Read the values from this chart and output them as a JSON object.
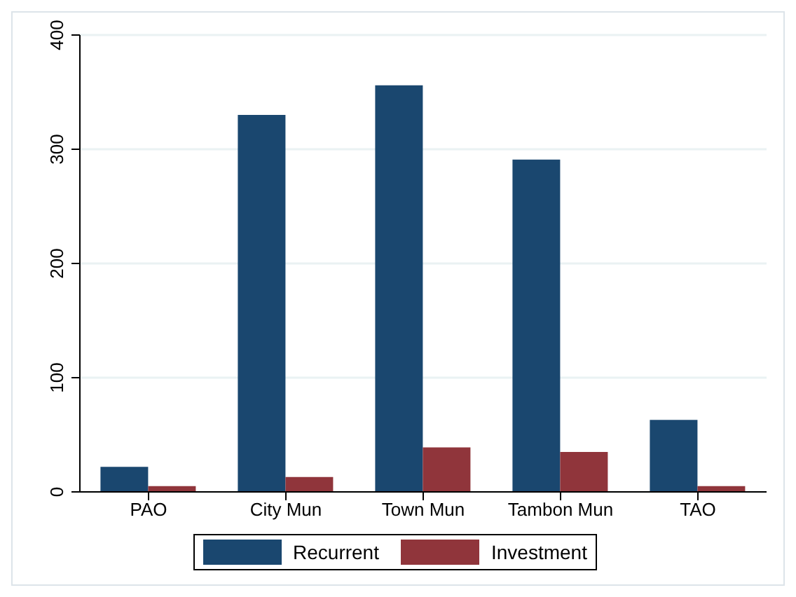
{
  "chart_data": {
    "type": "bar",
    "categories": [
      "PAO",
      "City Mun",
      "Town Mun",
      "Tambon Mun",
      "TAO"
    ],
    "series": [
      {
        "name": "Recurrent",
        "color": "#1a476f",
        "values": [
          22,
          330,
          356,
          291,
          63
        ]
      },
      {
        "name": "Investment",
        "color": "#90353b",
        "values": [
          5,
          13,
          39,
          35,
          5
        ]
      }
    ],
    "ylim": [
      0,
      400
    ],
    "yticks": [
      0,
      100,
      200,
      300,
      400
    ],
    "grid": "y",
    "legend": "bottom"
  }
}
